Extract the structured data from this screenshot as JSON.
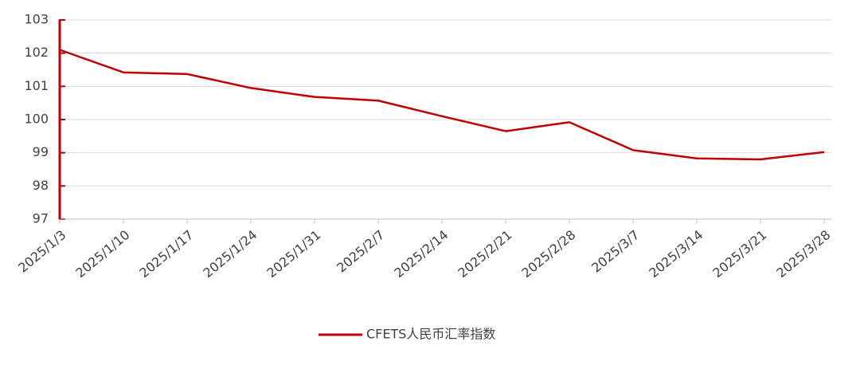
{
  "chart_data": {
    "type": "line",
    "categories": [
      "2025/1/3",
      "2025/1/10",
      "2025/1/17",
      "2025/1/24",
      "2025/1/31",
      "2025/2/7",
      "2025/2/14",
      "2025/2/21",
      "2025/2/28",
      "2025/3/7",
      "2025/3/14",
      "2025/3/21",
      "2025/3/28"
    ],
    "series": [
      {
        "name": "CFETS人民币汇率指数",
        "color": "#c00000",
        "values": [
          102.1,
          101.42,
          101.37,
          100.95,
          100.68,
          100.57,
          100.1,
          99.65,
          99.92,
          99.08,
          98.83,
          98.8,
          99.02
        ]
      }
    ],
    "ylim": [
      97,
      103
    ],
    "yticks": [
      97,
      98,
      99,
      100,
      101,
      102,
      103
    ],
    "grid": true,
    "legend": "bottom"
  }
}
